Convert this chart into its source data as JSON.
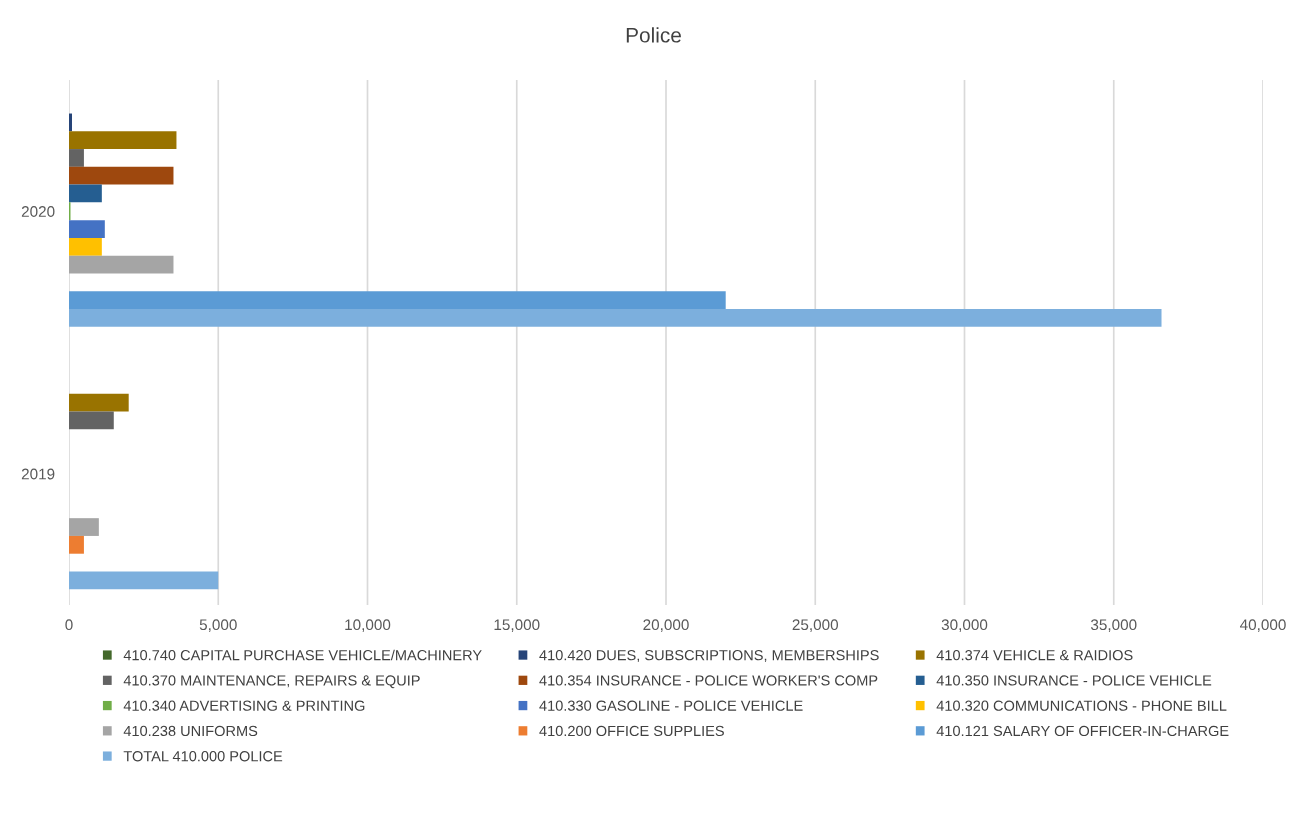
{
  "chart_data": {
    "type": "bar",
    "title": "Police",
    "orientation": "horizontal",
    "categories": [
      "2020",
      "2019"
    ],
    "series": [
      {
        "name": "410.740 CAPITAL PURCHASE VEHICLE/MACHINERY",
        "color": "#43682b",
        "values": [
          0,
          0
        ]
      },
      {
        "name": "410.420 DUES, SUBSCRIPTIONS, MEMBERSHIPS",
        "color": "#264478",
        "values": [
          100,
          0
        ]
      },
      {
        "name": "410.374 VEHICLE & RAIDIOS",
        "color": "#997300",
        "values": [
          3600,
          2000
        ]
      },
      {
        "name": "410.370 MAINTENANCE, REPAIRS & EQUIP",
        "color": "#636363",
        "values": [
          500,
          1500
        ]
      },
      {
        "name": "410.354 INSURANCE - POLICE WORKER'S COMP",
        "color": "#9e480e",
        "values": [
          3500,
          0
        ]
      },
      {
        "name": "410.350 INSURANCE - POLICE VEHICLE",
        "color": "#255e91",
        "values": [
          1100,
          0
        ]
      },
      {
        "name": "410.340 ADVERTISING & PRINTING",
        "color": "#70ad47",
        "values": [
          50,
          0
        ]
      },
      {
        "name": "410.330 GASOLINE - POLICE VEHICLE",
        "color": "#4472c4",
        "values": [
          1200,
          0
        ]
      },
      {
        "name": "410.320 COMMUNICATIONS - PHONE BILL",
        "color": "#ffc000",
        "values": [
          1100,
          0
        ]
      },
      {
        "name": "410.238 UNIFORMS",
        "color": "#a5a5a5",
        "values": [
          3500,
          1000
        ]
      },
      {
        "name": "410.200 OFFICE SUPPLIES",
        "color": "#ed7d31",
        "values": [
          0,
          500
        ]
      },
      {
        "name": "410.121 SALARY OF OFFICER-IN-CHARGE",
        "color": "#5b9bd5",
        "values": [
          22000,
          0
        ]
      },
      {
        "name": "TOTAL 410.000 POLICE",
        "color": "#7cafdd",
        "values": [
          36600,
          5000
        ]
      }
    ],
    "xlim": [
      0,
      40000
    ],
    "xticks": [
      {
        "value": 0,
        "label": "0"
      },
      {
        "value": 5000,
        "label": "5,000"
      },
      {
        "value": 10000,
        "label": "10,000"
      },
      {
        "value": 15000,
        "label": "15,000"
      },
      {
        "value": 20000,
        "label": "20,000"
      },
      {
        "value": 25000,
        "label": "25,000"
      },
      {
        "value": 30000,
        "label": "30,000"
      },
      {
        "value": 35000,
        "label": "35,000"
      },
      {
        "value": 40000,
        "label": "40,000"
      }
    ],
    "grid": "x",
    "legend": "bottom"
  }
}
